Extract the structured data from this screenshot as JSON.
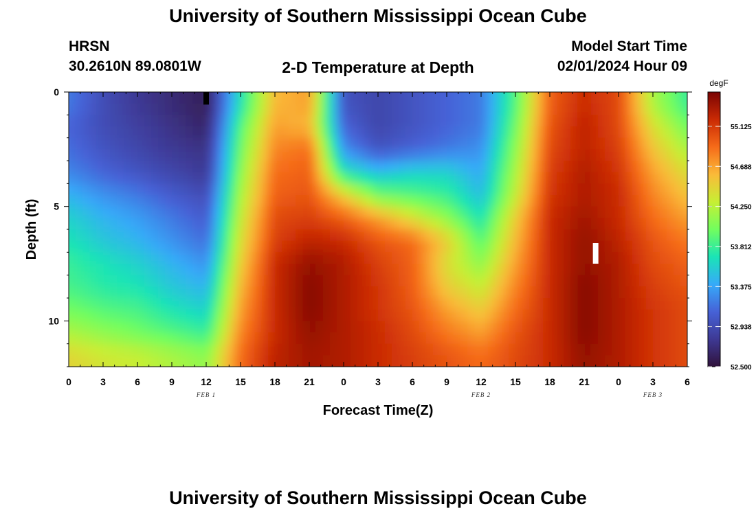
{
  "header": {
    "title": "University of Southern Mississippi Ocean Cube",
    "station": "HRSN",
    "coords": "30.2610N  89.0801W",
    "subtitle": "2-D Temperature at Depth",
    "model_label": "Model Start Time",
    "model_time": "02/01/2024 Hour 09"
  },
  "footer": {
    "title": "University of Southern Mississippi Ocean Cube"
  },
  "chart_data": {
    "type": "heatmap",
    "title": "2-D Temperature at Depth",
    "xlabel": "Forecast Time(Z)",
    "ylabel": "Depth (ft)",
    "x_tick_labels": [
      "0",
      "3",
      "6",
      "9",
      "12",
      "15",
      "18",
      "21",
      "0",
      "3",
      "6",
      "9",
      "12",
      "15",
      "18",
      "21",
      "0",
      "3",
      "6"
    ],
    "x_hours_from_start": [
      0,
      3,
      6,
      9,
      12,
      15,
      18,
      21,
      24,
      27,
      30,
      33,
      36,
      39,
      42,
      45,
      48,
      51,
      54
    ],
    "x_range_hours": [
      0,
      54
    ],
    "date_labels": [
      {
        "text": "FEB 1",
        "hour": 12
      },
      {
        "text": "FEB 2",
        "hour": 36
      },
      {
        "text": "FEB 3",
        "hour": 51
      }
    ],
    "y_ticks": [
      0,
      5,
      10
    ],
    "y_range": [
      0,
      12
    ],
    "y_inverted": true,
    "grid": false,
    "colorbar": {
      "unit": "degF",
      "min": 52.5,
      "max": 55.5,
      "tick_labels": [
        "55.125",
        "54.688",
        "54.250",
        "53.812",
        "53.375",
        "52.938",
        "52.500"
      ],
      "tick_values": [
        55.125,
        54.688,
        54.25,
        53.812,
        53.375,
        52.938,
        52.5
      ],
      "colors": [
        "#30123b",
        "#3e3994",
        "#4662d7",
        "#36aaf9",
        "#1ae4b6",
        "#72fe5e",
        "#c7ef34",
        "#faba39",
        "#f66b19",
        "#ca2a04",
        "#7a0403"
      ]
    },
    "depth_levels_ft": [
      0.5,
      1.5,
      2.5,
      3.5,
      4.5,
      5.5,
      6.5,
      7.5,
      8.5,
      9.5,
      10.5,
      11.5
    ],
    "hours": [
      0,
      3,
      6,
      9,
      12,
      15,
      18,
      21,
      24,
      27,
      30,
      33,
      36,
      39,
      42,
      45,
      48,
      51,
      54
    ],
    "temperature_degF": [
      [
        53.2,
        52.95,
        52.8,
        52.7,
        52.6,
        53.7,
        54.6,
        54.7,
        53.0,
        52.9,
        53.0,
        53.1,
        53.2,
        53.9,
        54.95,
        55.2,
        55.05,
        54.2,
        53.8
      ],
      [
        53.1,
        52.95,
        52.85,
        52.75,
        52.65,
        53.9,
        54.7,
        54.6,
        53.1,
        52.9,
        53.0,
        53.1,
        53.2,
        54.0,
        55.0,
        55.25,
        55.05,
        54.4,
        54.0
      ],
      [
        53.15,
        53.0,
        52.9,
        52.8,
        52.75,
        54.0,
        54.8,
        54.9,
        53.3,
        53.0,
        53.1,
        53.2,
        53.3,
        54.1,
        55.05,
        55.25,
        55.1,
        54.55,
        54.2
      ],
      [
        53.25,
        53.1,
        53.0,
        52.9,
        52.8,
        54.1,
        54.9,
        54.95,
        53.7,
        53.5,
        53.6,
        53.6,
        53.4,
        54.2,
        55.1,
        55.3,
        55.15,
        54.7,
        54.4
      ],
      [
        53.45,
        53.3,
        53.2,
        53.05,
        52.95,
        54.2,
        54.95,
        55.0,
        54.5,
        54.0,
        53.9,
        53.8,
        53.5,
        54.3,
        55.15,
        55.3,
        55.2,
        54.8,
        54.55
      ],
      [
        53.6,
        53.45,
        53.35,
        53.2,
        53.05,
        54.3,
        55.05,
        55.1,
        54.95,
        54.7,
        54.4,
        54.1,
        53.7,
        54.5,
        55.2,
        55.35,
        55.2,
        54.9,
        54.7
      ],
      [
        53.7,
        53.55,
        53.45,
        53.3,
        53.15,
        54.4,
        55.1,
        55.25,
        55.2,
        55.0,
        54.9,
        54.5,
        53.9,
        54.6,
        55.2,
        55.4,
        55.25,
        55.0,
        54.85
      ],
      [
        53.8,
        53.7,
        53.6,
        53.45,
        53.3,
        54.5,
        55.2,
        55.4,
        55.3,
        55.1,
        54.95,
        54.4,
        54.1,
        54.7,
        55.2,
        55.4,
        55.3,
        55.05,
        54.95
      ],
      [
        53.85,
        53.75,
        53.7,
        53.55,
        53.45,
        54.6,
        55.2,
        55.45,
        55.3,
        55.15,
        54.95,
        54.5,
        54.3,
        54.8,
        55.2,
        55.45,
        55.3,
        55.1,
        55.0
      ],
      [
        54.0,
        53.9,
        53.85,
        53.7,
        53.6,
        54.7,
        55.2,
        55.45,
        55.3,
        55.15,
        55.0,
        54.7,
        54.5,
        54.9,
        55.2,
        55.45,
        55.3,
        55.15,
        55.05
      ],
      [
        54.2,
        54.1,
        54.0,
        53.9,
        53.8,
        54.8,
        55.2,
        55.4,
        55.3,
        55.2,
        55.05,
        54.85,
        54.7,
        55.0,
        55.2,
        55.45,
        55.3,
        55.15,
        55.05
      ],
      [
        54.45,
        54.35,
        54.3,
        54.2,
        54.1,
        54.9,
        55.25,
        55.35,
        55.3,
        55.2,
        55.1,
        55.0,
        54.9,
        55.05,
        55.2,
        55.4,
        55.3,
        55.15,
        55.05
      ]
    ],
    "annotations": [
      {
        "type": "marker",
        "color": "#000000",
        "hour": 12,
        "depth_range_ft": [
          0,
          0.55
        ]
      },
      {
        "type": "marker",
        "color": "#ffffff",
        "hour": 46,
        "depth_range_ft": [
          6.6,
          7.5
        ]
      }
    ]
  }
}
